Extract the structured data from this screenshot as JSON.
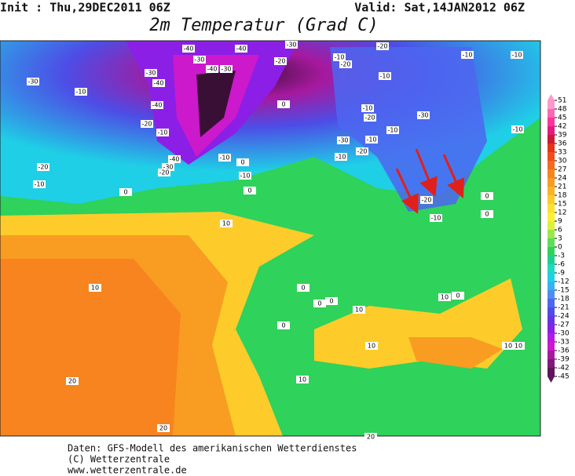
{
  "header": {
    "init": "Init : Thu,29DEC2011 06Z",
    "valid": "Valid: Sat,14JAN2012 06Z",
    "title": "2m Temperatur (Grad C)"
  },
  "colorbar": {
    "ticks": [
      51,
      48,
      45,
      42,
      39,
      36,
      33,
      30,
      27,
      24,
      21,
      18,
      15,
      12,
      9,
      6,
      3,
      0,
      -3,
      -6,
      -9,
      -12,
      -15,
      -18,
      -21,
      -24,
      -27,
      -30,
      -33,
      -36,
      -39,
      -42,
      -45
    ],
    "colors": [
      "#ff99cc",
      "#ff66b3",
      "#ff3399",
      "#e6197f",
      "#cc1a33",
      "#e63319",
      "#f04d1a",
      "#f56a1f",
      "#f7841f",
      "#f99c22",
      "#fbb426",
      "#fdcc2b",
      "#ffe033",
      "#fff033",
      "#d9f23a",
      "#9be84a",
      "#5fdc5a",
      "#2fd25a",
      "#1fcf8f",
      "#1fd9c4",
      "#1fcfe6",
      "#33b3f2",
      "#4d8cf2",
      "#4d66f0",
      "#4d4de6",
      "#6633e6",
      "#8c1fe6",
      "#b31ae6",
      "#cc19cc",
      "#a6199e",
      "#80197a",
      "#5e1559"
    ]
  },
  "contour_labels": [
    -40,
    -30,
    -40,
    -30,
    -20,
    -30,
    -40,
    -30,
    -40,
    -40,
    -20,
    -10,
    -40,
    -30,
    -20,
    -30,
    -10,
    -20,
    -10,
    0,
    -10,
    -10,
    0,
    0,
    -10,
    -20,
    -10,
    -10,
    -20,
    -30,
    -10,
    -30,
    -10,
    -20,
    -10,
    -20,
    -10,
    -10,
    -10,
    -10,
    -20,
    0,
    10,
    10,
    0,
    0,
    0,
    10,
    10,
    0,
    0,
    10,
    10,
    10,
    10,
    20,
    20,
    20,
    0,
    0
  ],
  "footer": [
    "Daten: GFS-Modell des amerikanischen Wetterdienstes",
    "(C) Wetterzentrale",
    "www.wetterzentrale.de"
  ]
}
